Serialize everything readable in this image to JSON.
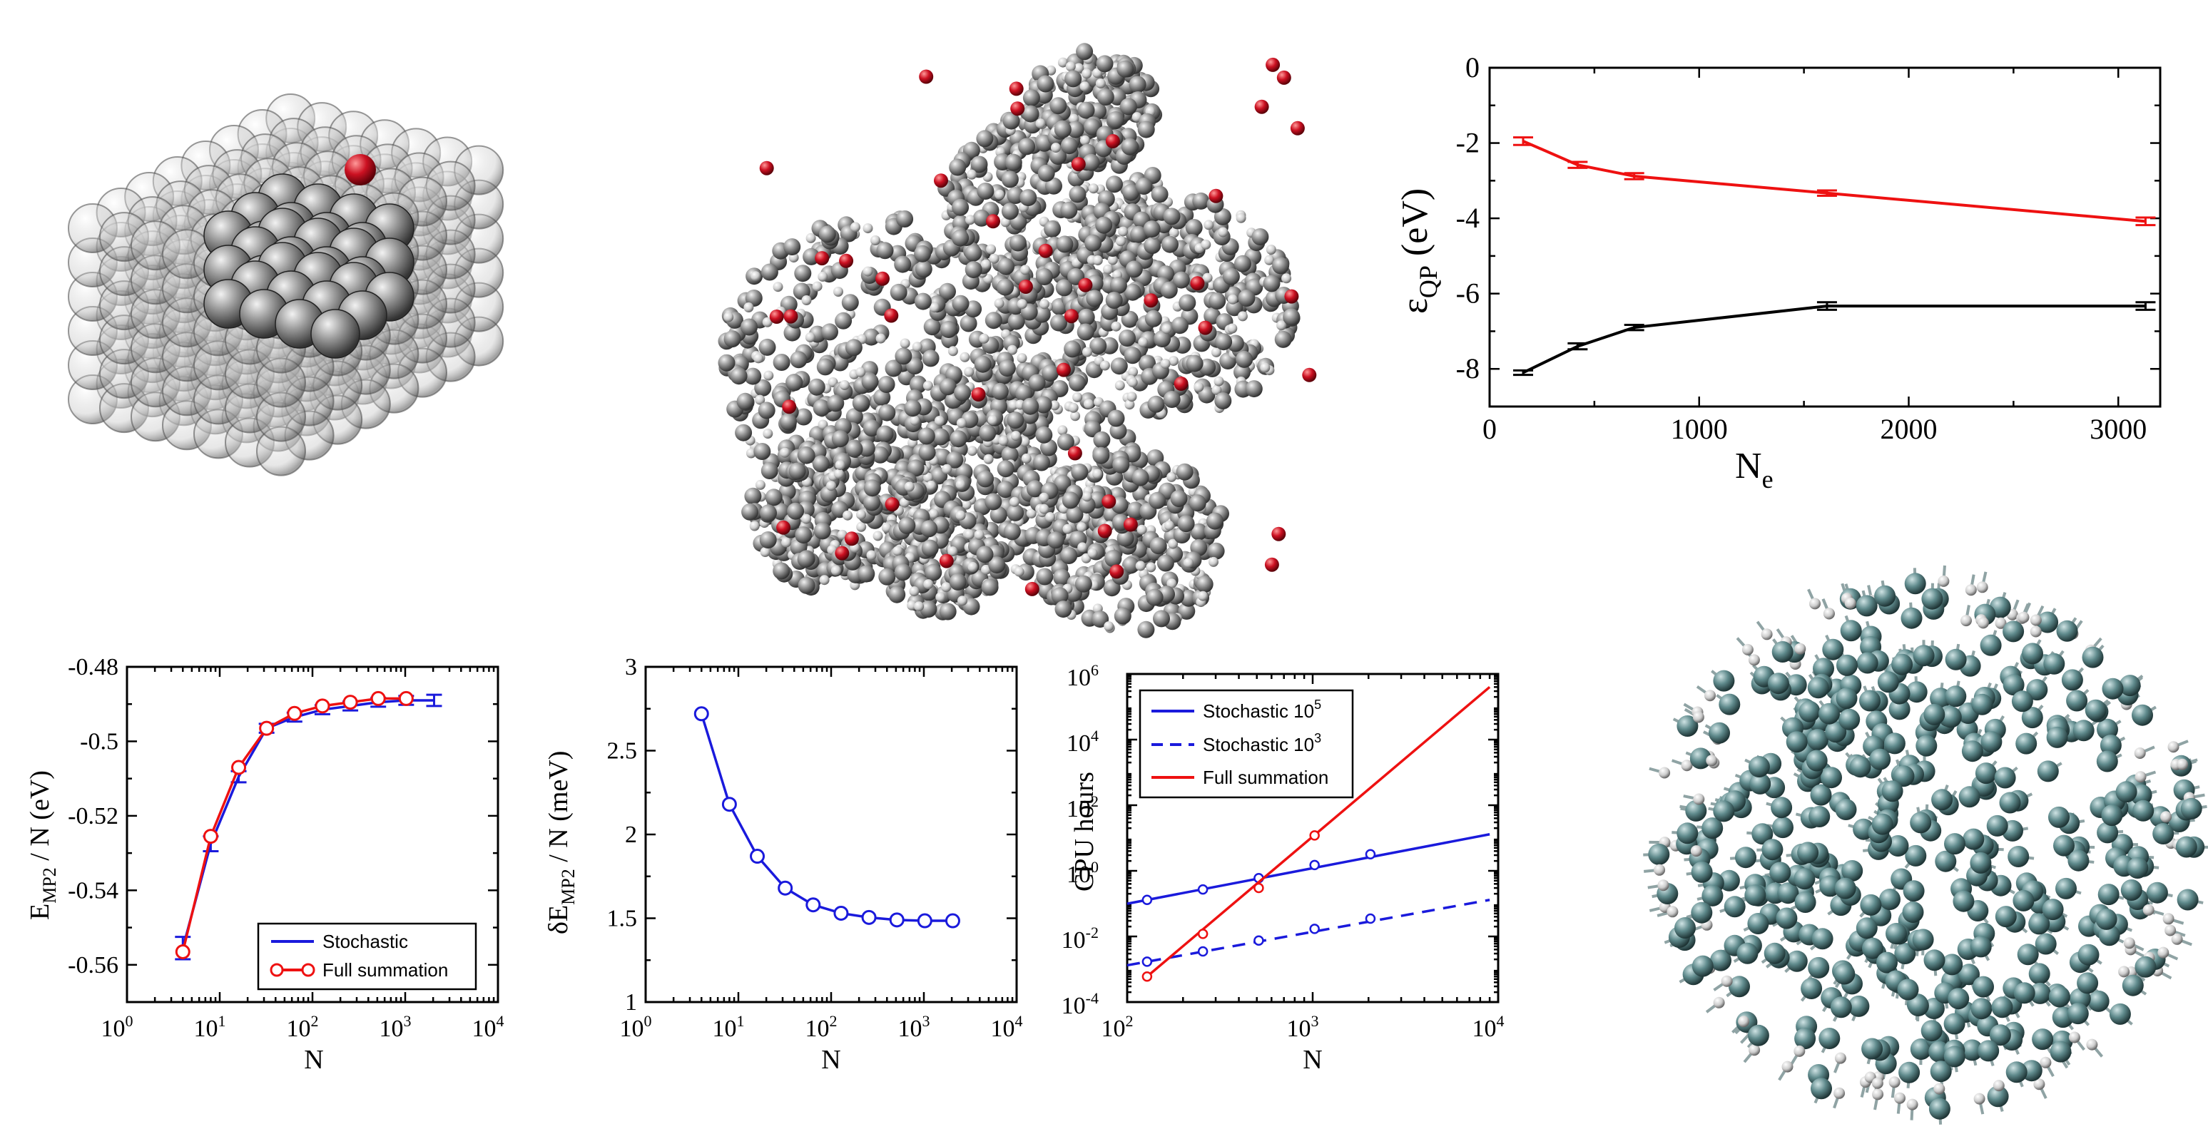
{
  "colors": {
    "red": "#ee1111",
    "blue": "#1a1adc",
    "black": "#000000",
    "atom_gray": "#777777",
    "oxygen_red": "#cc1122",
    "si_teal": "#5f8a8c",
    "h_white": "#dddddd"
  },
  "illustrations": [
    {
      "id": "slab",
      "description_icon": "metal-slab-adsorbate-icon"
    },
    {
      "id": "polymer",
      "description_icon": "polymer-cluster-icon"
    },
    {
      "id": "nanocrystal",
      "description_icon": "silicon-nanocrystal-icon"
    }
  ],
  "chart_data": [
    {
      "id": "eqp",
      "type": "line",
      "xlabel_main": "N",
      "xlabel_sub": "e",
      "ylabel_main": "ε",
      "ylabel_sub": "QP",
      "ylabel_unit": " (eV)",
      "xlim": [
        0,
        3200
      ],
      "ylim": [
        -9,
        0
      ],
      "xticks": [
        0,
        1000,
        2000,
        3000
      ],
      "yticks": [
        0,
        -2,
        -4,
        -6,
        -8
      ],
      "xtick_labels": [
        "0",
        "1000",
        "2000",
        "3000"
      ],
      "ytick_labels": [
        "0",
        "-2",
        "-4",
        "-6",
        "-8"
      ],
      "series": [
        {
          "color": "#ee1111",
          "x": [
            160,
            420,
            690,
            1610,
            3130
          ],
          "y": [
            -1.95,
            -2.58,
            -2.88,
            -3.33,
            -4.08
          ],
          "err": [
            0.1,
            0.08,
            0.08,
            0.07,
            0.1
          ]
        },
        {
          "color": "#000000",
          "x": [
            160,
            420,
            690,
            1610,
            3130
          ],
          "y": [
            -8.1,
            -7.4,
            -6.9,
            -6.33,
            -6.33
          ],
          "err": [
            0.06,
            0.08,
            0.07,
            0.1,
            0.1
          ]
        }
      ]
    },
    {
      "id": "emp2",
      "type": "line",
      "log_x": true,
      "xlabel": "N",
      "ylabel_main": "E",
      "ylabel_sub": "MP2",
      "ylabel_unit": " / N (eV)",
      "xlim": [
        1,
        10000
      ],
      "ylim": [
        -0.57,
        -0.48
      ],
      "yticks": [
        -0.48,
        -0.5,
        -0.52,
        -0.54,
        -0.56
      ],
      "ytick_labels": [
        "-0.48",
        "-0.5",
        "-0.52",
        "-0.54",
        "-0.56"
      ],
      "xtick_exps": [
        "0",
        "1",
        "2",
        "3",
        "4"
      ],
      "legend": [
        "Stochastic",
        "Full summation"
      ],
      "series": [
        {
          "name": "Stochastic",
          "color": "#1a1adc",
          "x": [
            4,
            8,
            16,
            32,
            64,
            128,
            256,
            512,
            1024,
            2048
          ],
          "y": [
            -0.5555,
            -0.5275,
            -0.5095,
            -0.4965,
            -0.4935,
            -0.4915,
            -0.4905,
            -0.4895,
            -0.489,
            -0.489
          ],
          "err": [
            0.003,
            0.002,
            0.0015,
            0.0012,
            0.0012,
            0.0012,
            0.0012,
            0.0012,
            0.0012,
            0.0015
          ]
        },
        {
          "name": "Full summation",
          "color": "#ee1111",
          "x": [
            4,
            8,
            16,
            32,
            64,
            128,
            256,
            512,
            1024
          ],
          "y": [
            -0.5565,
            -0.5255,
            -0.507,
            -0.4965,
            -0.4925,
            -0.4905,
            -0.4895,
            -0.4885,
            -0.4885
          ]
        }
      ]
    },
    {
      "id": "demp2",
      "type": "line",
      "log_x": true,
      "xlabel": "N",
      "ylabel_pre": "δE",
      "ylabel_sub": "MP2",
      "ylabel_unit": " / N (meV)",
      "xlim": [
        1,
        10000
      ],
      "ylim": [
        1,
        3
      ],
      "yticks": [
        1,
        1.5,
        2,
        2.5,
        3
      ],
      "ytick_labels": [
        "1",
        "1.5",
        "2",
        "2.5",
        "3"
      ],
      "xtick_exps": [
        "0",
        "1",
        "2",
        "3",
        "4"
      ],
      "series": [
        {
          "color": "#1a1adc",
          "x": [
            4,
            8,
            16,
            32,
            64,
            128,
            256,
            512,
            1024,
            2048
          ],
          "y": [
            2.72,
            2.18,
            1.87,
            1.68,
            1.58,
            1.53,
            1.505,
            1.49,
            1.485,
            1.485
          ]
        }
      ]
    },
    {
      "id": "cpu",
      "type": "line",
      "log_x": true,
      "log_y": true,
      "xlabel": "N",
      "ylabel": "CPU hours",
      "xlim": [
        100,
        10000
      ],
      "ylim": [
        0.0001,
        1000000
      ],
      "xtick_exps": [
        "2",
        "3",
        "4"
      ],
      "ytick_exps": [
        "-4",
        "-2",
        "0",
        "2",
        "4",
        "6"
      ],
      "legend": [
        "Stochastic 10",
        "Stochastic 10",
        "Full summation"
      ],
      "legend_sup": [
        "5",
        "3",
        ""
      ],
      "series": [
        {
          "name": "Stochastic 10^5",
          "color": "#1a1adc",
          "dash": false,
          "x": [
            128,
            256,
            512,
            1024,
            2048
          ],
          "y": [
            0.13,
            0.27,
            0.6,
            1.5,
            3.2
          ],
          "fit_end": [
            9000,
            13
          ]
        },
        {
          "name": "Stochastic 10^3",
          "color": "#1a1adc",
          "dash": true,
          "x": [
            128,
            256,
            512,
            1024,
            2048
          ],
          "y": [
            0.0017,
            0.0035,
            0.0075,
            0.017,
            0.035
          ],
          "fit_end": [
            9000,
            0.13
          ]
        },
        {
          "name": "Full summation",
          "color": "#ee1111",
          "dash": false,
          "x": [
            128,
            256,
            512,
            1024
          ],
          "y": [
            0.0006,
            0.012,
            0.3,
            12
          ],
          "fit_end": [
            9000,
            400000
          ]
        }
      ]
    }
  ]
}
